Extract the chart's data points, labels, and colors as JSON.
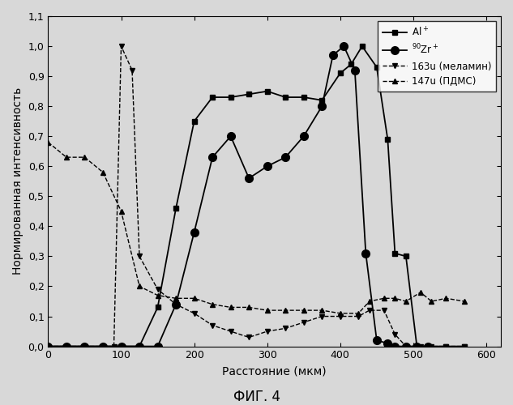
{
  "title": "ФИГ. 4",
  "xlabel": "Расстояние (мкм)",
  "ylabel": "Нормированная интенсивность",
  "xlim": [
    0,
    620
  ],
  "ylim": [
    0,
    1.1
  ],
  "yticks": [
    0.0,
    0.1,
    0.2,
    0.3,
    0.4,
    0.5,
    0.6,
    0.7,
    0.8,
    0.9,
    1.0,
    1.1
  ],
  "xticks": [
    0,
    100,
    200,
    300,
    400,
    500,
    600
  ],
  "series": {
    "Al": {
      "x": [
        0,
        25,
        50,
        75,
        100,
        125,
        150,
        175,
        200,
        225,
        250,
        275,
        300,
        325,
        350,
        375,
        400,
        415,
        430,
        450,
        465,
        475,
        490,
        505,
        520,
        545,
        570
      ],
      "y": [
        0.0,
        0.0,
        0.0,
        0.0,
        0.0,
        0.0,
        0.13,
        0.46,
        0.75,
        0.83,
        0.83,
        0.84,
        0.85,
        0.83,
        0.83,
        0.82,
        0.91,
        0.94,
        1.0,
        0.93,
        0.69,
        0.31,
        0.3,
        0.0,
        0.0,
        0.0,
        0.0
      ],
      "marker": "s",
      "linestyle": "-",
      "label": "Al$^+$",
      "markersize": 5
    },
    "Zr": {
      "x": [
        0,
        25,
        50,
        75,
        100,
        125,
        150,
        175,
        200,
        225,
        250,
        275,
        300,
        325,
        350,
        375,
        390,
        405,
        420,
        435,
        450,
        465,
        475,
        490,
        505,
        520
      ],
      "y": [
        0.0,
        0.0,
        0.0,
        0.0,
        0.0,
        0.0,
        0.0,
        0.14,
        0.38,
        0.63,
        0.7,
        0.56,
        0.6,
        0.63,
        0.7,
        0.8,
        0.97,
        1.0,
        0.92,
        0.31,
        0.02,
        0.01,
        0.0,
        0.0,
        0.0,
        0.0
      ],
      "marker": "o",
      "linestyle": "-",
      "label": "$^{90}$Zr$^+$",
      "markersize": 7
    },
    "melamin": {
      "x": [
        0,
        25,
        50,
        75,
        90,
        100,
        115,
        125,
        150,
        175,
        200,
        225,
        250,
        275,
        300,
        325,
        350,
        375,
        400,
        425,
        440,
        460,
        475,
        490,
        510,
        525,
        545,
        570
      ],
      "y": [
        0.0,
        0.0,
        0.0,
        0.0,
        0.0,
        1.0,
        0.92,
        0.3,
        0.19,
        0.14,
        0.11,
        0.07,
        0.05,
        0.03,
        0.05,
        0.06,
        0.08,
        0.1,
        0.1,
        0.1,
        0.12,
        0.12,
        0.04,
        0.0,
        0.0,
        0.0,
        0.0,
        0.0
      ],
      "marker": "v",
      "linestyle": "--",
      "label": "163u (меламин)",
      "markersize": 5
    },
    "pdms": {
      "x": [
        0,
        25,
        50,
        75,
        100,
        125,
        150,
        175,
        200,
        225,
        250,
        275,
        300,
        325,
        350,
        375,
        400,
        425,
        440,
        460,
        475,
        490,
        510,
        525,
        545,
        570
      ],
      "y": [
        0.68,
        0.63,
        0.63,
        0.58,
        0.45,
        0.2,
        0.17,
        0.16,
        0.16,
        0.14,
        0.13,
        0.13,
        0.12,
        0.12,
        0.12,
        0.12,
        0.11,
        0.11,
        0.15,
        0.16,
        0.16,
        0.15,
        0.18,
        0.15,
        0.16,
        0.15
      ],
      "marker": "^",
      "linestyle": "--",
      "label": "147u (ПДМС)",
      "markersize": 5
    }
  },
  "background_color": "#d8d8d8",
  "plot_bg": "#d8d8d8",
  "legend_loc": "upper right",
  "figsize": [
    6.33,
    5.0
  ],
  "dpi": 100
}
